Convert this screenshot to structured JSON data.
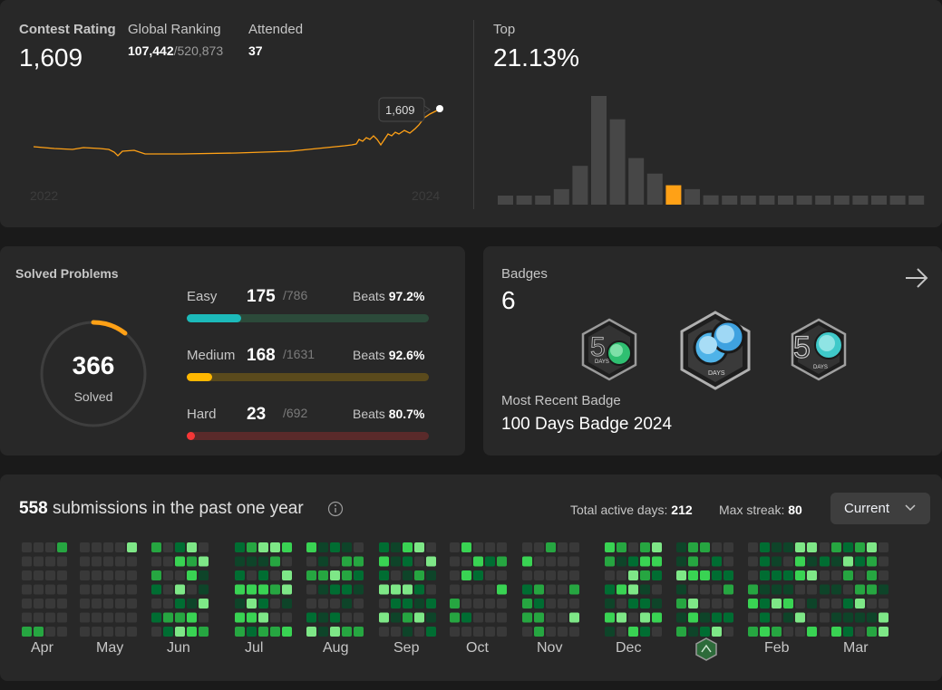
{
  "contest": {
    "rating_label": "Contest Rating",
    "rating_value": "1,609",
    "ranking_label": "Global Ranking",
    "ranking_value": "107,442",
    "ranking_total": "/520,873",
    "attended_label": "Attended",
    "attended_value": "37",
    "tooltip": "1,609",
    "year_start": "2022",
    "year_end": "2024",
    "line_color": "#ffa116",
    "top_label": "Top",
    "top_value": "21.13%"
  },
  "chart_data": {
    "type": "bar",
    "title": "",
    "xlabel": "",
    "ylabel": "",
    "values": [
      1,
      1,
      1,
      2,
      5,
      14,
      11,
      6,
      4,
      2.5,
      2,
      1.2,
      1,
      1,
      1,
      1,
      1,
      1,
      1,
      1,
      1,
      1,
      1
    ],
    "highlight_index": 9,
    "bar_color": "#474747",
    "highlight_color": "#ffa116"
  },
  "solved": {
    "title": "Solved Problems",
    "total": "366",
    "total_label": "Solved",
    "progress_fraction": 0.105,
    "ring_color": "#ffa116",
    "difficulties": [
      {
        "name": "Easy",
        "count": "175",
        "total": "/786",
        "beats_label": "Beats",
        "beats": "97.2%",
        "fraction": 0.223,
        "fill": "#1cbaba",
        "track": "#2c4a3a"
      },
      {
        "name": "Medium",
        "count": "168",
        "total": "/1631",
        "beats_label": "Beats",
        "beats": "92.6%",
        "fraction": 0.103,
        "fill": "#ffb700",
        "track": "#5a4a1c"
      },
      {
        "name": "Hard",
        "count": "23",
        "total": "/692",
        "beats_label": "Beats",
        "beats": "80.7%",
        "fraction": 0.033,
        "fill": "#f63737",
        "track": "#5a2a2a"
      }
    ]
  },
  "badges": {
    "title": "Badges",
    "count": "6",
    "recent_label": "Most Recent Badge",
    "recent_name": "100 Days Badge 2024",
    "badge_text_1": "DAYS",
    "badge_text_2": "DAYS",
    "badge_text_3": "DAYS"
  },
  "submissions": {
    "count": "558",
    "text": "submissions in the past one year",
    "active_label": "Total active days:",
    "active_value": "212",
    "streak_label": "Max streak:",
    "streak_value": "80",
    "select_value": "Current",
    "months": [
      "Apr",
      "May",
      "Jun",
      "Jul",
      "Aug",
      "Sep",
      "Oct",
      "Nov",
      "Dec",
      "",
      "Feb",
      "Mar"
    ]
  }
}
